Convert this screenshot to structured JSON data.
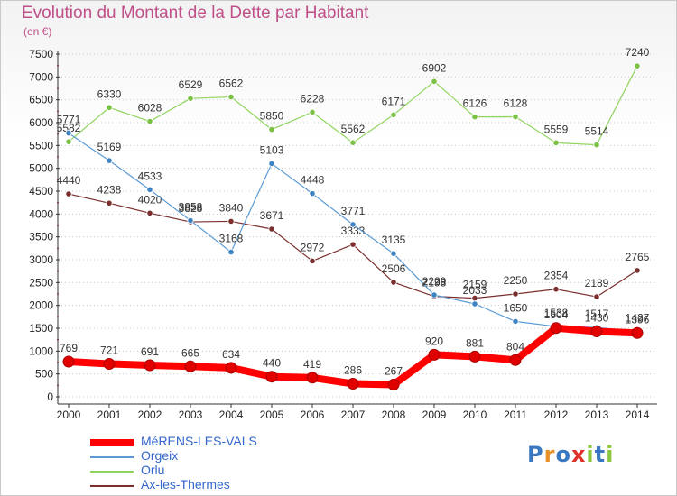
{
  "title": "Evolution du Montant de la Dette par Habitant",
  "unit_label": "(en €)",
  "logo_text": "Proxiti",
  "colors": {
    "title": "#c0508a",
    "axis": "#333333",
    "grid": "#c8c8c8",
    "legend_text": "#3366cc"
  },
  "chart_data": {
    "type": "line",
    "title": "Evolution du Montant de la Dette par Habitant",
    "ylabel": "(en €)",
    "xlabel": "",
    "ylim": [
      0,
      7500
    ],
    "y_ticks": [
      0,
      500,
      1000,
      1500,
      2000,
      2500,
      3000,
      3500,
      4000,
      4500,
      5000,
      5500,
      6000,
      6500,
      7000,
      7500
    ],
    "grid": true,
    "legend_position": "bottom-left",
    "categories": [
      "2000",
      "2001",
      "2002",
      "2003",
      "2004",
      "2005",
      "2006",
      "2007",
      "2008",
      "2009",
      "2010",
      "2011",
      "2012",
      "2013",
      "2014"
    ],
    "series": [
      {
        "name": "Ax-les-Thermes",
        "color": "#7a2e2e",
        "marker": "#7a2e2e",
        "width": 1.2,
        "values": [
          4440,
          4238,
          4020,
          3828,
          3840,
          3671,
          2972,
          3333,
          2506,
          2198,
          2159,
          2250,
          2354,
          2189,
          2765
        ]
      },
      {
        "name": "Orlu",
        "color": "#8fd45e",
        "marker": "#7ac143",
        "width": 1.2,
        "values": [
          5582,
          6330,
          6028,
          6529,
          6562,
          5850,
          6228,
          5562,
          6171,
          6902,
          6126,
          6128,
          5559,
          5514,
          7240
        ]
      },
      {
        "name": "Orgeix",
        "color": "#5b9bd5",
        "marker": "#3e83c4",
        "width": 1.2,
        "values": [
          5771,
          5169,
          4533,
          3858,
          3168,
          5103,
          4448,
          3771,
          3135,
          2229,
          2033,
          1650,
          1538,
          1517,
          1427
        ]
      },
      {
        "name": "MéRENS-LES-VALS",
        "color": "#ff0000",
        "marker": "#e00000",
        "width": 8,
        "values": [
          769,
          721,
          691,
          665,
          634,
          440,
          419,
          286,
          267,
          920,
          881,
          804,
          1504,
          1430,
          1396
        ]
      }
    ],
    "legend_order": [
      "MéRENS-LES-VALS",
      "Orgeix",
      "Orlu",
      "Ax-les-Thermes"
    ]
  }
}
